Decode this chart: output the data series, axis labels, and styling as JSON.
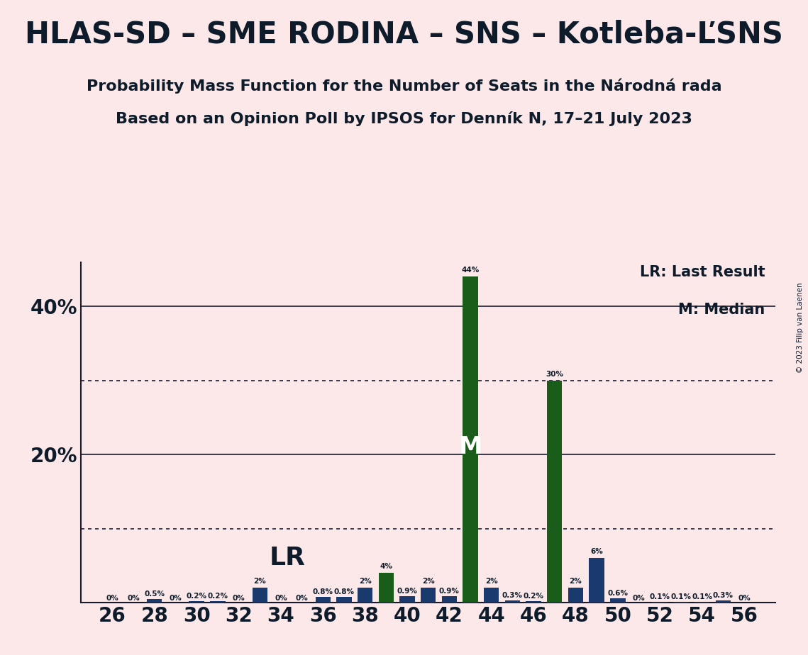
{
  "title": "HLAS-SD – SME RODINA – SNS – Kotleba-ĽSNS",
  "subtitle1": "Probability Mass Function for the Number of Seats in the Národná rada",
  "subtitle2": "Based on an Opinion Poll by IPSOS for Denník N, 17–21 July 2023",
  "copyright": "© 2023 Filip van Laenen",
  "legend_lr": "LR: Last Result",
  "legend_m": "M: Median",
  "lr_seat": 33,
  "median_seat": 43,
  "background_color": "#fce8e8",
  "bar_green": "#1a5c1a",
  "bar_blue": "#1a3a6e",
  "xlabel_seats": [
    26,
    28,
    30,
    32,
    34,
    36,
    38,
    40,
    42,
    44,
    46,
    48,
    50,
    52,
    54,
    56
  ],
  "seats": [
    26,
    27,
    28,
    29,
    30,
    31,
    32,
    33,
    34,
    35,
    36,
    37,
    38,
    39,
    40,
    41,
    42,
    43,
    44,
    45,
    46,
    47,
    48,
    49,
    50,
    51,
    52,
    53,
    54,
    55,
    56
  ],
  "probabilities": [
    0.0,
    0.0,
    0.5,
    0.0,
    0.2,
    0.2,
    0.0,
    2.0,
    0.0,
    0.0,
    0.8,
    0.8,
    2.0,
    4.0,
    0.9,
    2.0,
    0.9,
    44.0,
    2.0,
    0.3,
    0.2,
    30.0,
    2.0,
    6.0,
    0.6,
    0.0,
    0.1,
    0.1,
    0.1,
    0.3,
    0.0
  ],
  "bar_colors": [
    "blue",
    "blue",
    "blue",
    "blue",
    "blue",
    "blue",
    "blue",
    "blue",
    "blue",
    "blue",
    "blue",
    "blue",
    "blue",
    "green",
    "blue",
    "blue",
    "blue",
    "green",
    "blue",
    "blue",
    "blue",
    "green",
    "blue",
    "blue",
    "blue",
    "blue",
    "blue",
    "blue",
    "blue",
    "blue",
    "green"
  ],
  "ylim": [
    0,
    46
  ],
  "solid_yticks": [
    20,
    40
  ],
  "dotted_yticks": [
    10,
    30
  ],
  "title_fontsize": 30,
  "subtitle_fontsize": 16,
  "bar_width": 0.72,
  "bar_labels": {
    "26": "0%",
    "27": "0%",
    "28": "0.5%",
    "29": "0%",
    "30": "0.2%",
    "31": "0.2%",
    "32": "0%",
    "33": "2%",
    "34": "0%",
    "35": "0%",
    "36": "0.8%",
    "37": "0.8%",
    "38": "2%",
    "39": "4%",
    "40": "0.9%",
    "41": "2%",
    "42": "0.9%",
    "43": "44%",
    "44": "2%",
    "45": "0.3%",
    "46": "0.2%",
    "47": "30%",
    "48": "2%",
    "49": "6%",
    "50": "0.6%",
    "51": "0%",
    "52": "0.1%",
    "53": "0.1%",
    "54": "0.1%",
    "55": "0.3%",
    "56": "0%"
  }
}
